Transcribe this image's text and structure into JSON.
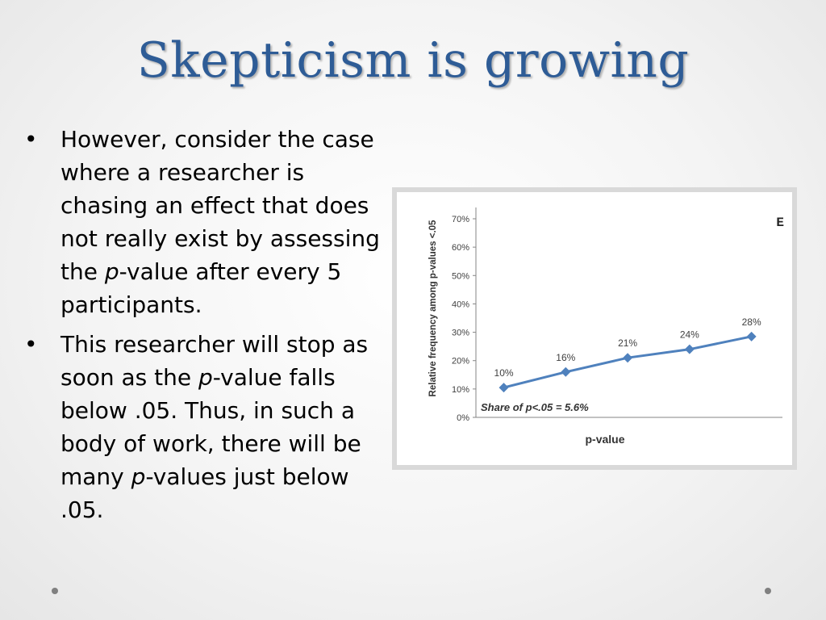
{
  "slide": {
    "title": "Skepticism is growing",
    "bullets": [
      {
        "marker": "•",
        "parts": [
          "However, consider the case where a researcher is chasing an effect that does not really exist by assessing the ",
          "p",
          "-value after every 5 participants."
        ]
      },
      {
        "marker": "•",
        "parts": [
          "This researcher will stop as soon as the ",
          "p",
          "-value falls below .05. Thus, in such a body of work, there will be many ",
          "p",
          "-values just below .05."
        ]
      }
    ]
  },
  "chart_data": {
    "type": "line",
    "panel_label": "E",
    "xlabel": "p-value",
    "ylabel": "Relative frequency among p-values <.05",
    "ylim": [
      0,
      70
    ],
    "yticks": [
      "0%",
      "10%",
      "20%",
      "30%",
      "40%",
      "50%",
      "60%",
      "70%"
    ],
    "x": [
      1,
      2,
      3,
      4,
      5
    ],
    "values": [
      10.5,
      16,
      21,
      24,
      28.5
    ],
    "data_labels": [
      "10%",
      "16%",
      "21%",
      "24%",
      "28%"
    ],
    "annotation": "Share of p<.05 = 5.6%",
    "line_color": "#4f81bd",
    "grid": false
  }
}
